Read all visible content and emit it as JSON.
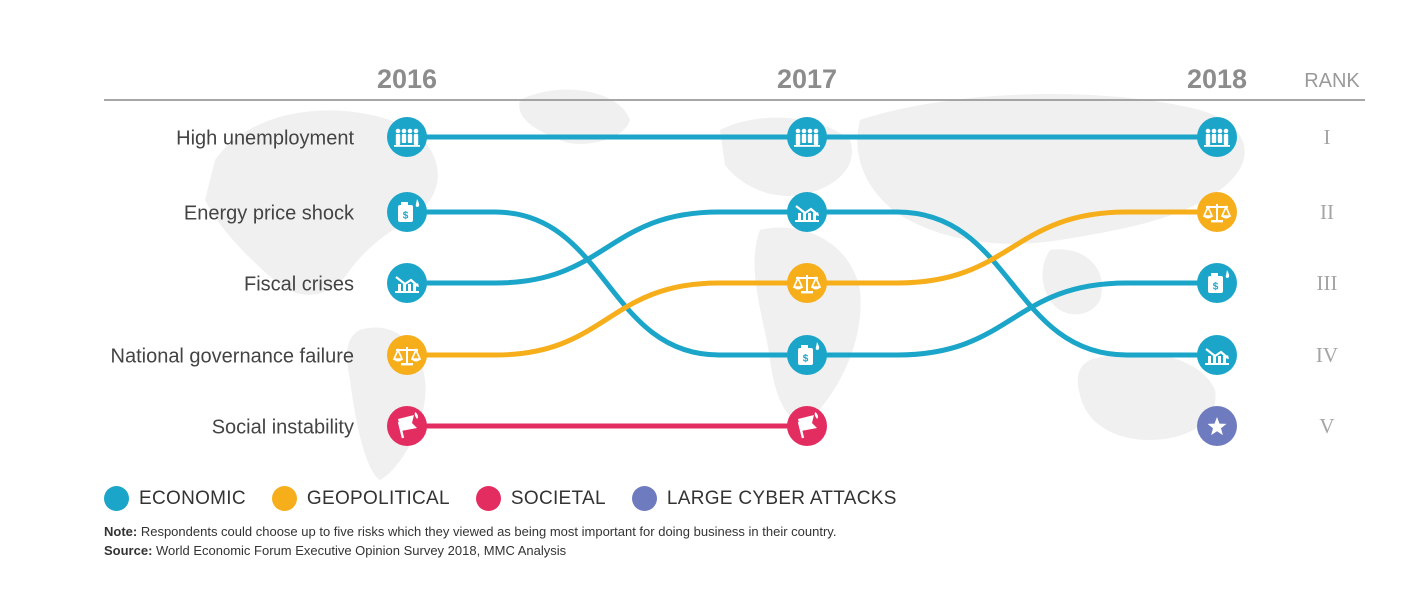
{
  "chart_data": {
    "type": "bump",
    "years": [
      "2016",
      "2017",
      "2018"
    ],
    "rank_header": "RANK",
    "rank_labels": [
      "I",
      "II",
      "III",
      "IV",
      "V"
    ],
    "row_labels": [
      "High unemployment",
      "Energy price shock",
      "Fiscal crises",
      "National governance failure",
      "Social instability"
    ],
    "series": [
      {
        "name": "High unemployment",
        "category": "economic",
        "icon": "people-icon",
        "ranks": [
          1,
          1,
          1
        ]
      },
      {
        "name": "Energy price shock",
        "category": "economic",
        "icon": "fuel-can-icon",
        "ranks": [
          2,
          4,
          3
        ]
      },
      {
        "name": "Fiscal crises",
        "category": "economic",
        "icon": "bank-decline-icon",
        "ranks": [
          3,
          2,
          4
        ]
      },
      {
        "name": "National governance failure",
        "category": "geopolitical",
        "icon": "scales-icon",
        "ranks": [
          4,
          3,
          2
        ]
      },
      {
        "name": "Social instability",
        "category": "societal",
        "icon": "protest-flag-icon",
        "ranks": [
          5,
          5,
          null
        ]
      },
      {
        "name": "Large cyber attacks",
        "category": "cyber",
        "icon": "star-icon",
        "ranks": [
          null,
          null,
          5
        ]
      }
    ]
  },
  "categories": [
    {
      "key": "economic",
      "label": "ECONOMIC",
      "color": "#1aa5c9"
    },
    {
      "key": "geopolitical",
      "label": "GEOPOLITICAL",
      "color": "#f6ae1b"
    },
    {
      "key": "societal",
      "label": "SOCIETAL",
      "color": "#e32c5f"
    },
    {
      "key": "cyber",
      "label": "LARGE CYBER ATTACKS",
      "color": "#6e7bbf"
    }
  ],
  "notes": {
    "note_label": "Note:",
    "note_text": " Respondents could choose up to five risks which they viewed as being most important for doing business in their country.",
    "source_label": "Source:",
    "source_text": " World Economic Forum Executive Opinion Survey 2018, MMC Analysis"
  }
}
